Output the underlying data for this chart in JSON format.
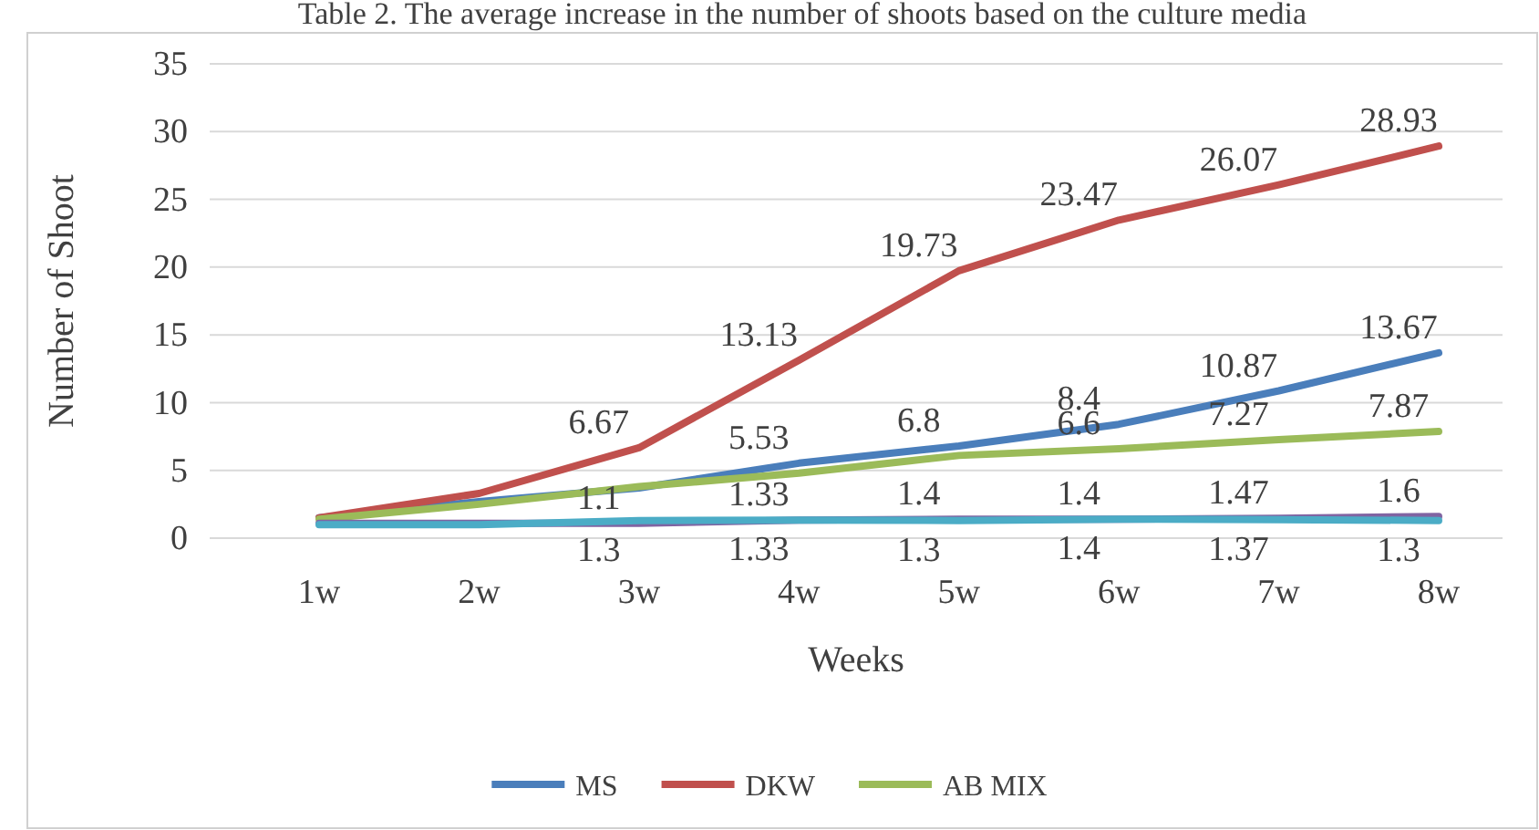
{
  "chart_data": {
    "type": "line",
    "title": "Table 2. The average increase in the number of shoots based on the culture media",
    "xlabel": "Weeks",
    "ylabel": "Number of Shoot",
    "categories": [
      "1w",
      "2w",
      "3w",
      "4w",
      "5w",
      "6w",
      "7w",
      "8w"
    ],
    "ylim": [
      0,
      35
    ],
    "yticks": [
      0,
      5,
      10,
      15,
      20,
      25,
      30,
      35
    ],
    "grid": "y",
    "legend": "bottom",
    "marker": "none",
    "line_style": "solid",
    "series": [
      {
        "name": "MS",
        "color": "#4a7ebb",
        "values": [
          1.5,
          2.7,
          3.7,
          5.53,
          6.8,
          8.4,
          10.87,
          13.67
        ],
        "value_labels": [
          null,
          null,
          null,
          "5.53",
          "6.8",
          "8.4",
          "10.87",
          "13.67"
        ]
      },
      {
        "name": "DKW",
        "color": "#c0504d",
        "values": [
          1.5,
          3.3,
          6.67,
          13.13,
          19.73,
          23.47,
          26.07,
          28.93
        ],
        "value_labels": [
          null,
          null,
          "6.67",
          "13.13",
          "19.73",
          "23.47",
          "26.07",
          "28.93"
        ]
      },
      {
        "name": "AB MIX",
        "color": "#9bbb59",
        "values": [
          1.4,
          2.5,
          3.8,
          4.8,
          6.1,
          6.6,
          7.27,
          7.87
        ],
        "value_labels": [
          null,
          null,
          null,
          null,
          null,
          "6.6",
          "7.27",
          "7.87"
        ]
      },
      {
        "color": "#8064a2",
        "values": [
          1.1,
          1.1,
          1.1,
          1.33,
          1.4,
          1.4,
          1.47,
          1.6
        ],
        "value_labels": [
          null,
          null,
          "1.1",
          "1.33",
          "1.4",
          "1.4",
          "1.47",
          "1.6"
        ]
      },
      {
        "color": "#4bacc6",
        "values": [
          1.0,
          1.0,
          1.3,
          1.33,
          1.3,
          1.4,
          1.37,
          1.3
        ],
        "value_labels": [
          null,
          null,
          "1.3",
          "1.33",
          "1.3",
          "1.4",
          "1.37",
          "1.3"
        ]
      }
    ]
  }
}
